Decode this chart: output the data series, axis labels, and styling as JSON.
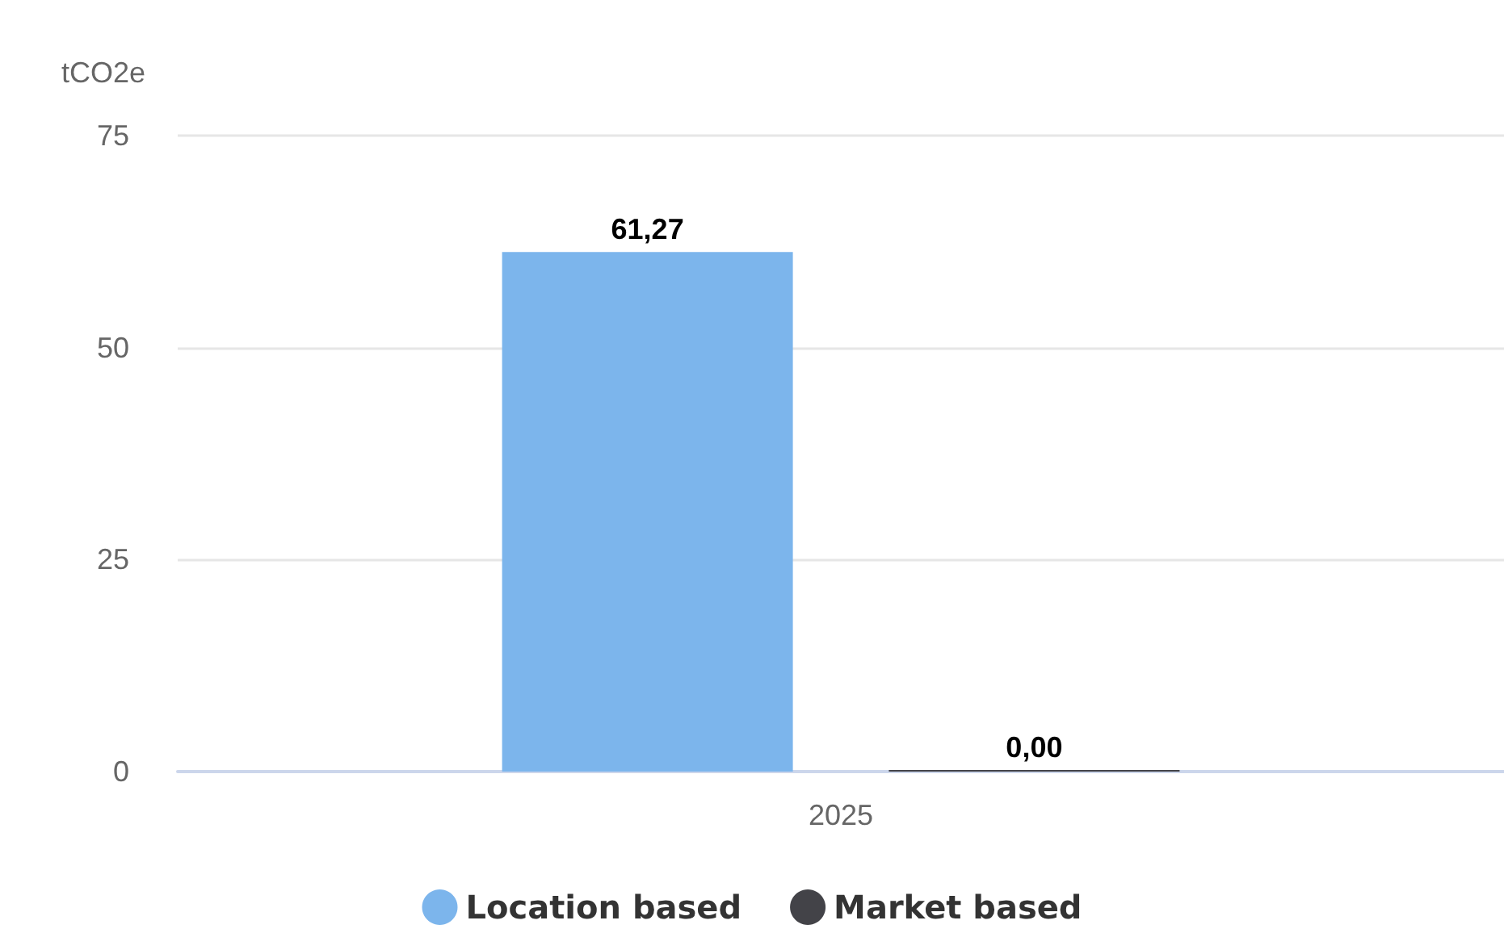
{
  "chart_data": {
    "type": "bar",
    "ylabel": "tCO2e",
    "categories": [
      "2025"
    ],
    "series": [
      {
        "name": "Location based",
        "color": "#7cb5ec",
        "values": [
          61.27
        ],
        "value_labels": [
          "61,27"
        ]
      },
      {
        "name": "Market based",
        "color": "#434348",
        "values": [
          0
        ],
        "value_labels": [
          "0,00"
        ]
      }
    ],
    "ylim": [
      0,
      75
    ],
    "yticks": [
      0,
      25,
      50,
      75
    ],
    "grid": "y",
    "legend": "bottom"
  }
}
